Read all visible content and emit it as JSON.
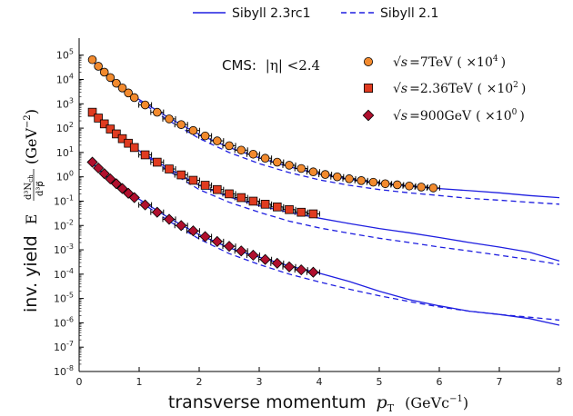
{
  "chart_data": {
    "type": "line",
    "xlabel": "transverse momentum",
    "xlabel_math": "p",
    "xlabel_math_sub": "T",
    "xlabel_unit": "(GeVc",
    "xlabel_unit_exp": "−1",
    "xlabel_unit_close": ")",
    "ylabel": "inv. yield",
    "ylabel_E": "E",
    "ylabel_num": "d³N",
    "ylabel_num_sub": "ch",
    "ylabel_den": "d³p⃗",
    "ylabel_unit": "(GeV",
    "ylabel_unit_exp": "−2",
    "ylabel_unit_close": ")",
    "xlim": [
      0,
      8
    ],
    "ylim": [
      1e-08,
      500000.0
    ],
    "yscale": "log",
    "grid": false,
    "x_ticks": [
      "0",
      "1",
      "2",
      "3",
      "4",
      "5",
      "6",
      "7",
      "8"
    ],
    "y_ticks": [
      {
        "base": "10",
        "exp": "5"
      },
      {
        "base": "10",
        "exp": "4"
      },
      {
        "base": "10",
        "exp": "3"
      },
      {
        "base": "10",
        "exp": "2"
      },
      {
        "base": "10",
        "exp": "1"
      },
      {
        "base": "10",
        "exp": "0"
      },
      {
        "base": "10",
        "exp": "-1"
      },
      {
        "base": "10",
        "exp": "-2"
      },
      {
        "base": "10",
        "exp": "-3"
      },
      {
        "base": "10",
        "exp": "-4"
      },
      {
        "base": "10",
        "exp": "-5"
      },
      {
        "base": "10",
        "exp": "-6"
      },
      {
        "base": "10",
        "exp": "-7"
      },
      {
        "base": "10",
        "exp": "-8"
      }
    ],
    "legend_top": [
      {
        "label": "Sibyll 2.3rc1",
        "style": "solid"
      },
      {
        "label": "Sibyll 2.1",
        "style": "dashed"
      }
    ],
    "annotation": {
      "prefix": "CMS:",
      "math": "|η| <2.4"
    },
    "line_color": "#1f1fe0",
    "series_data": [
      {
        "label_sqrt": "√s",
        "label_energy": "=7TeV",
        "label_scale": "( ×10",
        "label_scale_exp": "4",
        "label_close": ")",
        "marker": "circle",
        "color": "#f28a2e",
        "x": [
          0.22,
          0.32,
          0.42,
          0.52,
          0.62,
          0.72,
          0.82,
          0.92,
          1.1,
          1.3,
          1.5,
          1.7,
          1.9,
          2.1,
          2.3,
          2.5,
          2.7,
          2.9,
          3.1,
          3.3,
          3.5,
          3.7,
          3.9,
          4.1,
          4.3,
          4.5,
          4.7,
          4.9,
          5.1,
          5.3,
          5.5,
          5.7,
          5.9
        ],
        "y": [
          65000,
          35000,
          20000,
          12000,
          7000,
          4500,
          2800,
          1800,
          900,
          450,
          240,
          140,
          80,
          48,
          30,
          19,
          12.5,
          8.5,
          5.8,
          4.0,
          3.0,
          2.2,
          1.6,
          1.25,
          1.0,
          0.83,
          0.7,
          0.6,
          0.52,
          0.47,
          0.42,
          0.38,
          0.35
        ]
      },
      {
        "label_sqrt": "√s",
        "label_energy": "=2.36TeV",
        "label_scale": "( ×10",
        "label_scale_exp": "2",
        "label_close": ")",
        "marker": "square",
        "color": "#e03b20",
        "x": [
          0.22,
          0.32,
          0.42,
          0.52,
          0.62,
          0.72,
          0.82,
          0.92,
          1.1,
          1.3,
          1.5,
          1.7,
          1.9,
          2.1,
          2.3,
          2.5,
          2.7,
          2.9,
          3.1,
          3.3,
          3.5,
          3.7,
          3.9
        ],
        "y": [
          450,
          260,
          150,
          92,
          58,
          37,
          24,
          16,
          8,
          4,
          2.1,
          1.2,
          0.72,
          0.45,
          0.3,
          0.2,
          0.14,
          0.1,
          0.075,
          0.058,
          0.045,
          0.035,
          0.03
        ]
      },
      {
        "label_sqrt": "√s",
        "label_energy": "=900GeV",
        "label_scale": "( ×10",
        "label_scale_exp": "0",
        "label_close": ")",
        "marker": "diamond",
        "color": "#b0102e",
        "x": [
          0.22,
          0.32,
          0.42,
          0.52,
          0.62,
          0.72,
          0.82,
          0.92,
          1.1,
          1.3,
          1.5,
          1.7,
          1.9,
          2.1,
          2.3,
          2.5,
          2.7,
          2.9,
          3.1,
          3.3,
          3.5,
          3.7,
          3.9
        ],
        "y": [
          4.0,
          2.3,
          1.35,
          0.82,
          0.52,
          0.33,
          0.21,
          0.14,
          0.07,
          0.035,
          0.018,
          0.01,
          0.006,
          0.0035,
          0.0022,
          0.0014,
          0.0009,
          0.0006,
          0.0004,
          0.00028,
          0.0002,
          0.00015,
          0.00012
        ]
      }
    ],
    "model_lines": [
      {
        "style": "solid",
        "x": [
          0.2,
          0.6,
          1,
          1.5,
          2,
          2.5,
          3,
          3.5,
          4,
          4.5,
          5,
          5.5,
          6,
          6.5,
          7,
          7.5,
          8
        ],
        "y": [
          65000,
          6500,
          1500,
          260,
          55,
          16,
          6,
          2.6,
          1.3,
          0.8,
          0.55,
          0.42,
          0.33,
          0.27,
          0.22,
          0.17,
          0.14
        ]
      },
      {
        "style": "dashed",
        "x": [
          0.2,
          0.6,
          1,
          1.5,
          2,
          2.5,
          3,
          3.5,
          4,
          4.5,
          5,
          5.5,
          6,
          6.5,
          7,
          7.5,
          8
        ],
        "y": [
          65000,
          6000,
          1300,
          200,
          38,
          10,
          3.5,
          1.5,
          0.75,
          0.45,
          0.3,
          0.22,
          0.17,
          0.13,
          0.11,
          0.09,
          0.075
        ]
      },
      {
        "style": "solid",
        "x": [
          0.2,
          0.6,
          1,
          1.5,
          2,
          2.5,
          3,
          3.5,
          4,
          4.5,
          5,
          5.5,
          6,
          6.5,
          7,
          7.5,
          8
        ],
        "y": [
          450,
          55,
          12,
          2.1,
          0.45,
          0.15,
          0.065,
          0.035,
          0.02,
          0.012,
          0.0075,
          0.005,
          0.0032,
          0.002,
          0.0013,
          0.0008,
          0.00035
        ]
      },
      {
        "style": "dashed",
        "x": [
          0.2,
          0.6,
          1,
          1.5,
          2,
          2.5,
          3,
          3.5,
          4,
          4.5,
          5,
          5.5,
          6,
          6.5,
          7,
          7.5,
          8
        ],
        "y": [
          450,
          52,
          11,
          1.7,
          0.3,
          0.09,
          0.035,
          0.015,
          0.008,
          0.0048,
          0.003,
          0.002,
          0.0013,
          0.0009,
          0.0006,
          0.0004,
          0.00025
        ]
      },
      {
        "style": "solid",
        "x": [
          0.2,
          0.6,
          1,
          1.5,
          2,
          2.5,
          3,
          3.5,
          4,
          4.5,
          5,
          5.5,
          6,
          6.5,
          7,
          7.5,
          8
        ],
        "y": [
          4.0,
          0.5,
          0.12,
          0.02,
          0.0042,
          0.0012,
          0.0005,
          0.00022,
          0.00011,
          5e-05,
          2e-05,
          9e-06,
          5e-06,
          3e-06,
          2.2e-06,
          1.5e-06,
          8e-07
        ]
      },
      {
        "style": "dashed",
        "x": [
          0.2,
          0.6,
          1,
          1.5,
          2,
          2.5,
          3,
          3.5,
          4,
          4.5,
          5,
          5.5,
          6,
          6.5,
          7,
          7.5,
          8
        ],
        "y": [
          4.0,
          0.47,
          0.1,
          0.015,
          0.0028,
          0.0007,
          0.00025,
          0.0001,
          4.8e-05,
          2.4e-05,
          1.3e-05,
          7.5e-06,
          4.5e-06,
          3e-06,
          2.2e-06,
          1.7e-06,
          1.3e-06
        ]
      }
    ]
  }
}
